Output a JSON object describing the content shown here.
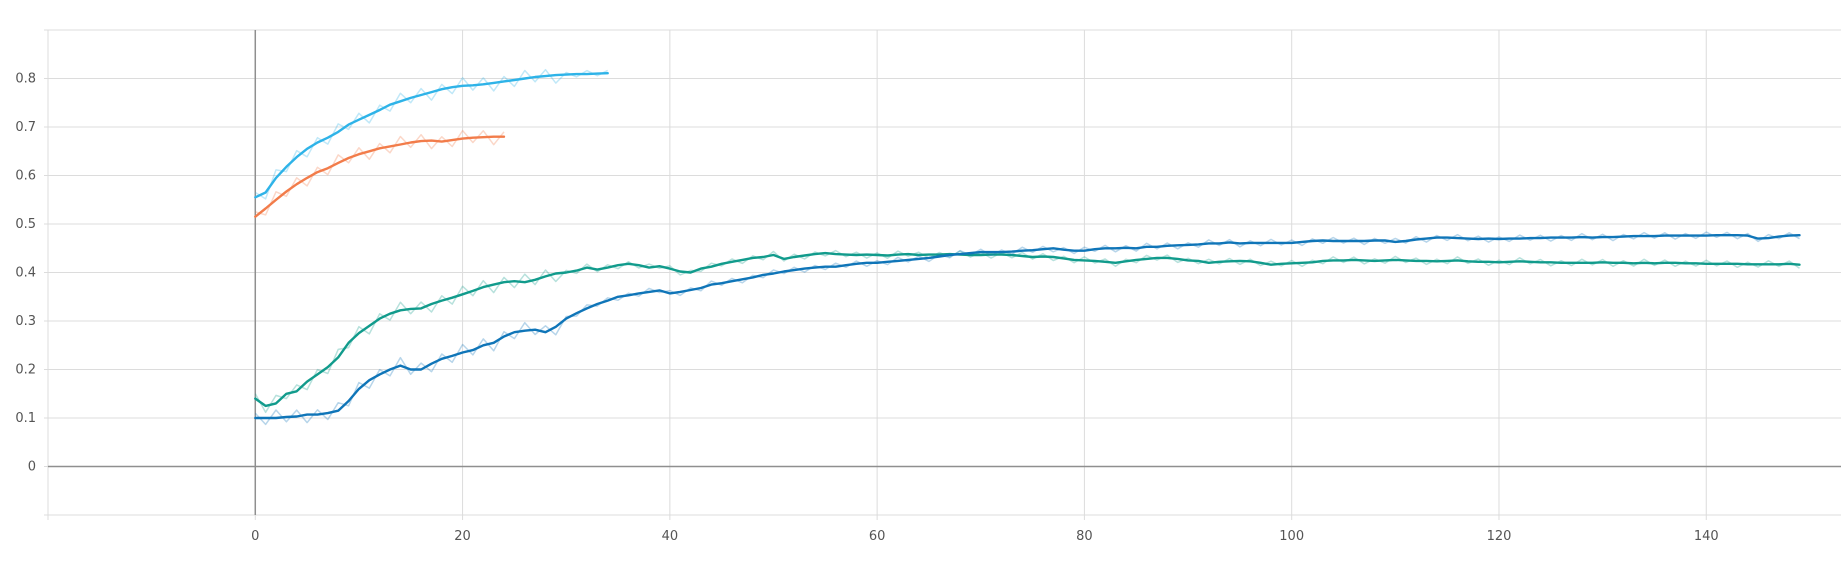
{
  "chart_data": {
    "type": "line",
    "title": "",
    "xlabel": "",
    "ylabel": "",
    "xlim": [
      -20,
      153
    ],
    "ylim": [
      -0.1,
      0.9
    ],
    "grid": true,
    "x_ticks": [
      "0",
      "20",
      "40",
      "60",
      "80",
      "100",
      "120",
      "140"
    ],
    "y_ticks": [
      "0",
      "0.1",
      "0.2",
      "0.3",
      "0.4",
      "0.5",
      "0.6",
      "0.7",
      "0.8"
    ],
    "series": [
      {
        "color": "#2eb3e8",
        "x": [
          0,
          1,
          2,
          3,
          4,
          5,
          6,
          7,
          8,
          9,
          10,
          11,
          12,
          13,
          14,
          15,
          16,
          17,
          18,
          19,
          20,
          21,
          22,
          23,
          24,
          25,
          26,
          27,
          28,
          29,
          30,
          31,
          32,
          33,
          34
        ],
        "values": [
          0.555,
          0.565,
          0.595,
          0.618,
          0.638,
          0.655,
          0.668,
          0.678,
          0.69,
          0.705,
          0.715,
          0.725,
          0.735,
          0.746,
          0.753,
          0.76,
          0.766,
          0.772,
          0.778,
          0.782,
          0.785,
          0.786,
          0.788,
          0.791,
          0.794,
          0.797,
          0.8,
          0.803,
          0.805,
          0.807,
          0.808,
          0.809,
          0.809,
          0.81,
          0.811
        ]
      },
      {
        "color": "#f27c4a",
        "x": [
          0,
          1,
          2,
          3,
          4,
          5,
          6,
          7,
          8,
          9,
          10,
          11,
          12,
          13,
          14,
          15,
          16,
          17,
          18,
          19,
          20,
          21,
          22,
          23,
          24
        ],
        "values": [
          0.515,
          0.532,
          0.55,
          0.567,
          0.582,
          0.595,
          0.607,
          0.615,
          0.626,
          0.636,
          0.644,
          0.65,
          0.656,
          0.66,
          0.664,
          0.668,
          0.671,
          0.672,
          0.67,
          0.673,
          0.676,
          0.678,
          0.679,
          0.68,
          0.68
        ]
      },
      {
        "color": "#119b8c",
        "x": [
          0,
          1,
          2,
          3,
          4,
          5,
          6,
          7,
          8,
          9,
          10,
          11,
          12,
          13,
          14,
          15,
          16,
          17,
          18,
          19,
          20,
          21,
          22,
          23,
          24,
          25,
          26,
          27,
          28,
          29,
          30,
          31,
          32,
          33,
          34,
          35,
          36,
          37,
          38,
          39,
          40,
          41,
          42,
          43,
          44,
          45,
          46,
          47,
          48,
          49,
          50,
          51,
          52,
          53,
          54,
          55,
          56,
          57,
          58,
          59,
          60,
          61,
          62,
          63,
          64,
          65,
          66,
          67,
          68,
          69,
          70,
          71,
          72,
          73,
          74,
          75,
          76,
          77,
          78,
          79,
          80,
          81,
          82,
          83,
          84,
          85,
          86,
          87,
          88,
          89,
          90,
          91,
          92,
          93,
          94,
          95,
          96,
          97,
          98,
          99,
          100,
          101,
          102,
          103,
          104,
          105,
          106,
          107,
          108,
          109,
          110,
          111,
          112,
          113,
          114,
          115,
          116,
          117,
          118,
          119,
          120,
          121,
          122,
          123,
          124,
          125,
          126,
          127,
          128,
          129,
          130,
          131,
          132,
          133,
          134,
          135,
          136,
          137,
          138,
          139,
          140,
          141,
          142,
          143,
          144,
          145,
          146,
          147,
          148,
          149
        ],
        "values": [
          0.14,
          0.125,
          0.13,
          0.15,
          0.155,
          0.175,
          0.19,
          0.205,
          0.225,
          0.255,
          0.275,
          0.29,
          0.305,
          0.315,
          0.322,
          0.325,
          0.326,
          0.335,
          0.342,
          0.348,
          0.355,
          0.362,
          0.37,
          0.375,
          0.38,
          0.382,
          0.38,
          0.385,
          0.392,
          0.398,
          0.4,
          0.404,
          0.41,
          0.406,
          0.41,
          0.415,
          0.418,
          0.415,
          0.41,
          0.413,
          0.408,
          0.402,
          0.4,
          0.408,
          0.412,
          0.418,
          0.422,
          0.426,
          0.43,
          0.432,
          0.436,
          0.428,
          0.432,
          0.435,
          0.438,
          0.44,
          0.438,
          0.437,
          0.436,
          0.437,
          0.436,
          0.435,
          0.437,
          0.438,
          0.436,
          0.437,
          0.437,
          0.438,
          0.437,
          0.436,
          0.436,
          0.437,
          0.437,
          0.436,
          0.434,
          0.432,
          0.433,
          0.432,
          0.429,
          0.426,
          0.425,
          0.424,
          0.422,
          0.42,
          0.423,
          0.426,
          0.428,
          0.43,
          0.43,
          0.428,
          0.425,
          0.424,
          0.42,
          0.422,
          0.423,
          0.424,
          0.423,
          0.42,
          0.416,
          0.418,
          0.419,
          0.42,
          0.421,
          0.424,
          0.425,
          0.425,
          0.426,
          0.425,
          0.424,
          0.425,
          0.426,
          0.425,
          0.424,
          0.424,
          0.423,
          0.424,
          0.425,
          0.423,
          0.422,
          0.422,
          0.421,
          0.422,
          0.423,
          0.422,
          0.421,
          0.421,
          0.42,
          0.42,
          0.42,
          0.42,
          0.421,
          0.42,
          0.42,
          0.419,
          0.42,
          0.419,
          0.42,
          0.42,
          0.419,
          0.419,
          0.418,
          0.418,
          0.418,
          0.418,
          0.417,
          0.417,
          0.417,
          0.417,
          0.418,
          0.416
        ]
      },
      {
        "color": "#0f75b8",
        "x": [
          0,
          1,
          2,
          3,
          4,
          5,
          6,
          7,
          8,
          9,
          10,
          11,
          12,
          13,
          14,
          15,
          16,
          17,
          18,
          19,
          20,
          21,
          22,
          23,
          24,
          25,
          26,
          27,
          28,
          29,
          30,
          31,
          32,
          33,
          34,
          35,
          36,
          37,
          38,
          39,
          40,
          41,
          42,
          43,
          44,
          45,
          46,
          47,
          48,
          49,
          50,
          51,
          52,
          53,
          54,
          55,
          56,
          57,
          58,
          59,
          60,
          61,
          62,
          63,
          64,
          65,
          66,
          67,
          68,
          69,
          70,
          71,
          72,
          73,
          74,
          75,
          76,
          77,
          78,
          79,
          80,
          81,
          82,
          83,
          84,
          85,
          86,
          87,
          88,
          89,
          90,
          91,
          92,
          93,
          94,
          95,
          96,
          97,
          98,
          99,
          100,
          101,
          102,
          103,
          104,
          105,
          106,
          107,
          108,
          109,
          110,
          111,
          112,
          113,
          114,
          115,
          116,
          117,
          118,
          119,
          120,
          121,
          122,
          123,
          124,
          125,
          126,
          127,
          128,
          129,
          130,
          131,
          132,
          133,
          134,
          135,
          136,
          137,
          138,
          139,
          140,
          141,
          142,
          143,
          144,
          145,
          146,
          147,
          148,
          149
        ],
        "values": [
          0.1,
          0.1,
          0.1,
          0.102,
          0.103,
          0.107,
          0.107,
          0.11,
          0.115,
          0.135,
          0.16,
          0.178,
          0.19,
          0.2,
          0.208,
          0.2,
          0.2,
          0.212,
          0.222,
          0.228,
          0.235,
          0.24,
          0.25,
          0.255,
          0.268,
          0.277,
          0.28,
          0.282,
          0.277,
          0.288,
          0.305,
          0.316,
          0.326,
          0.335,
          0.342,
          0.35,
          0.353,
          0.357,
          0.36,
          0.363,
          0.357,
          0.36,
          0.364,
          0.368,
          0.375,
          0.378,
          0.382,
          0.386,
          0.39,
          0.395,
          0.398,
          0.402,
          0.405,
          0.408,
          0.41,
          0.412,
          0.412,
          0.415,
          0.418,
          0.42,
          0.42,
          0.422,
          0.424,
          0.426,
          0.428,
          0.43,
          0.433,
          0.436,
          0.438,
          0.44,
          0.442,
          0.442,
          0.442,
          0.443,
          0.445,
          0.446,
          0.448,
          0.45,
          0.447,
          0.445,
          0.445,
          0.448,
          0.45,
          0.45,
          0.451,
          0.45,
          0.453,
          0.453,
          0.455,
          0.456,
          0.457,
          0.458,
          0.46,
          0.46,
          0.462,
          0.46,
          0.461,
          0.461,
          0.461,
          0.461,
          0.461,
          0.463,
          0.465,
          0.466,
          0.465,
          0.465,
          0.465,
          0.465,
          0.466,
          0.466,
          0.463,
          0.465,
          0.468,
          0.47,
          0.472,
          0.472,
          0.471,
          0.47,
          0.469,
          0.47,
          0.469,
          0.47,
          0.47,
          0.471,
          0.471,
          0.472,
          0.472,
          0.472,
          0.473,
          0.472,
          0.473,
          0.473,
          0.474,
          0.475,
          0.475,
          0.475,
          0.476,
          0.476,
          0.476,
          0.476,
          0.476,
          0.477,
          0.477,
          0.477,
          0.476,
          0.47,
          0.471,
          0.474,
          0.476,
          0.477
        ]
      }
    ]
  }
}
